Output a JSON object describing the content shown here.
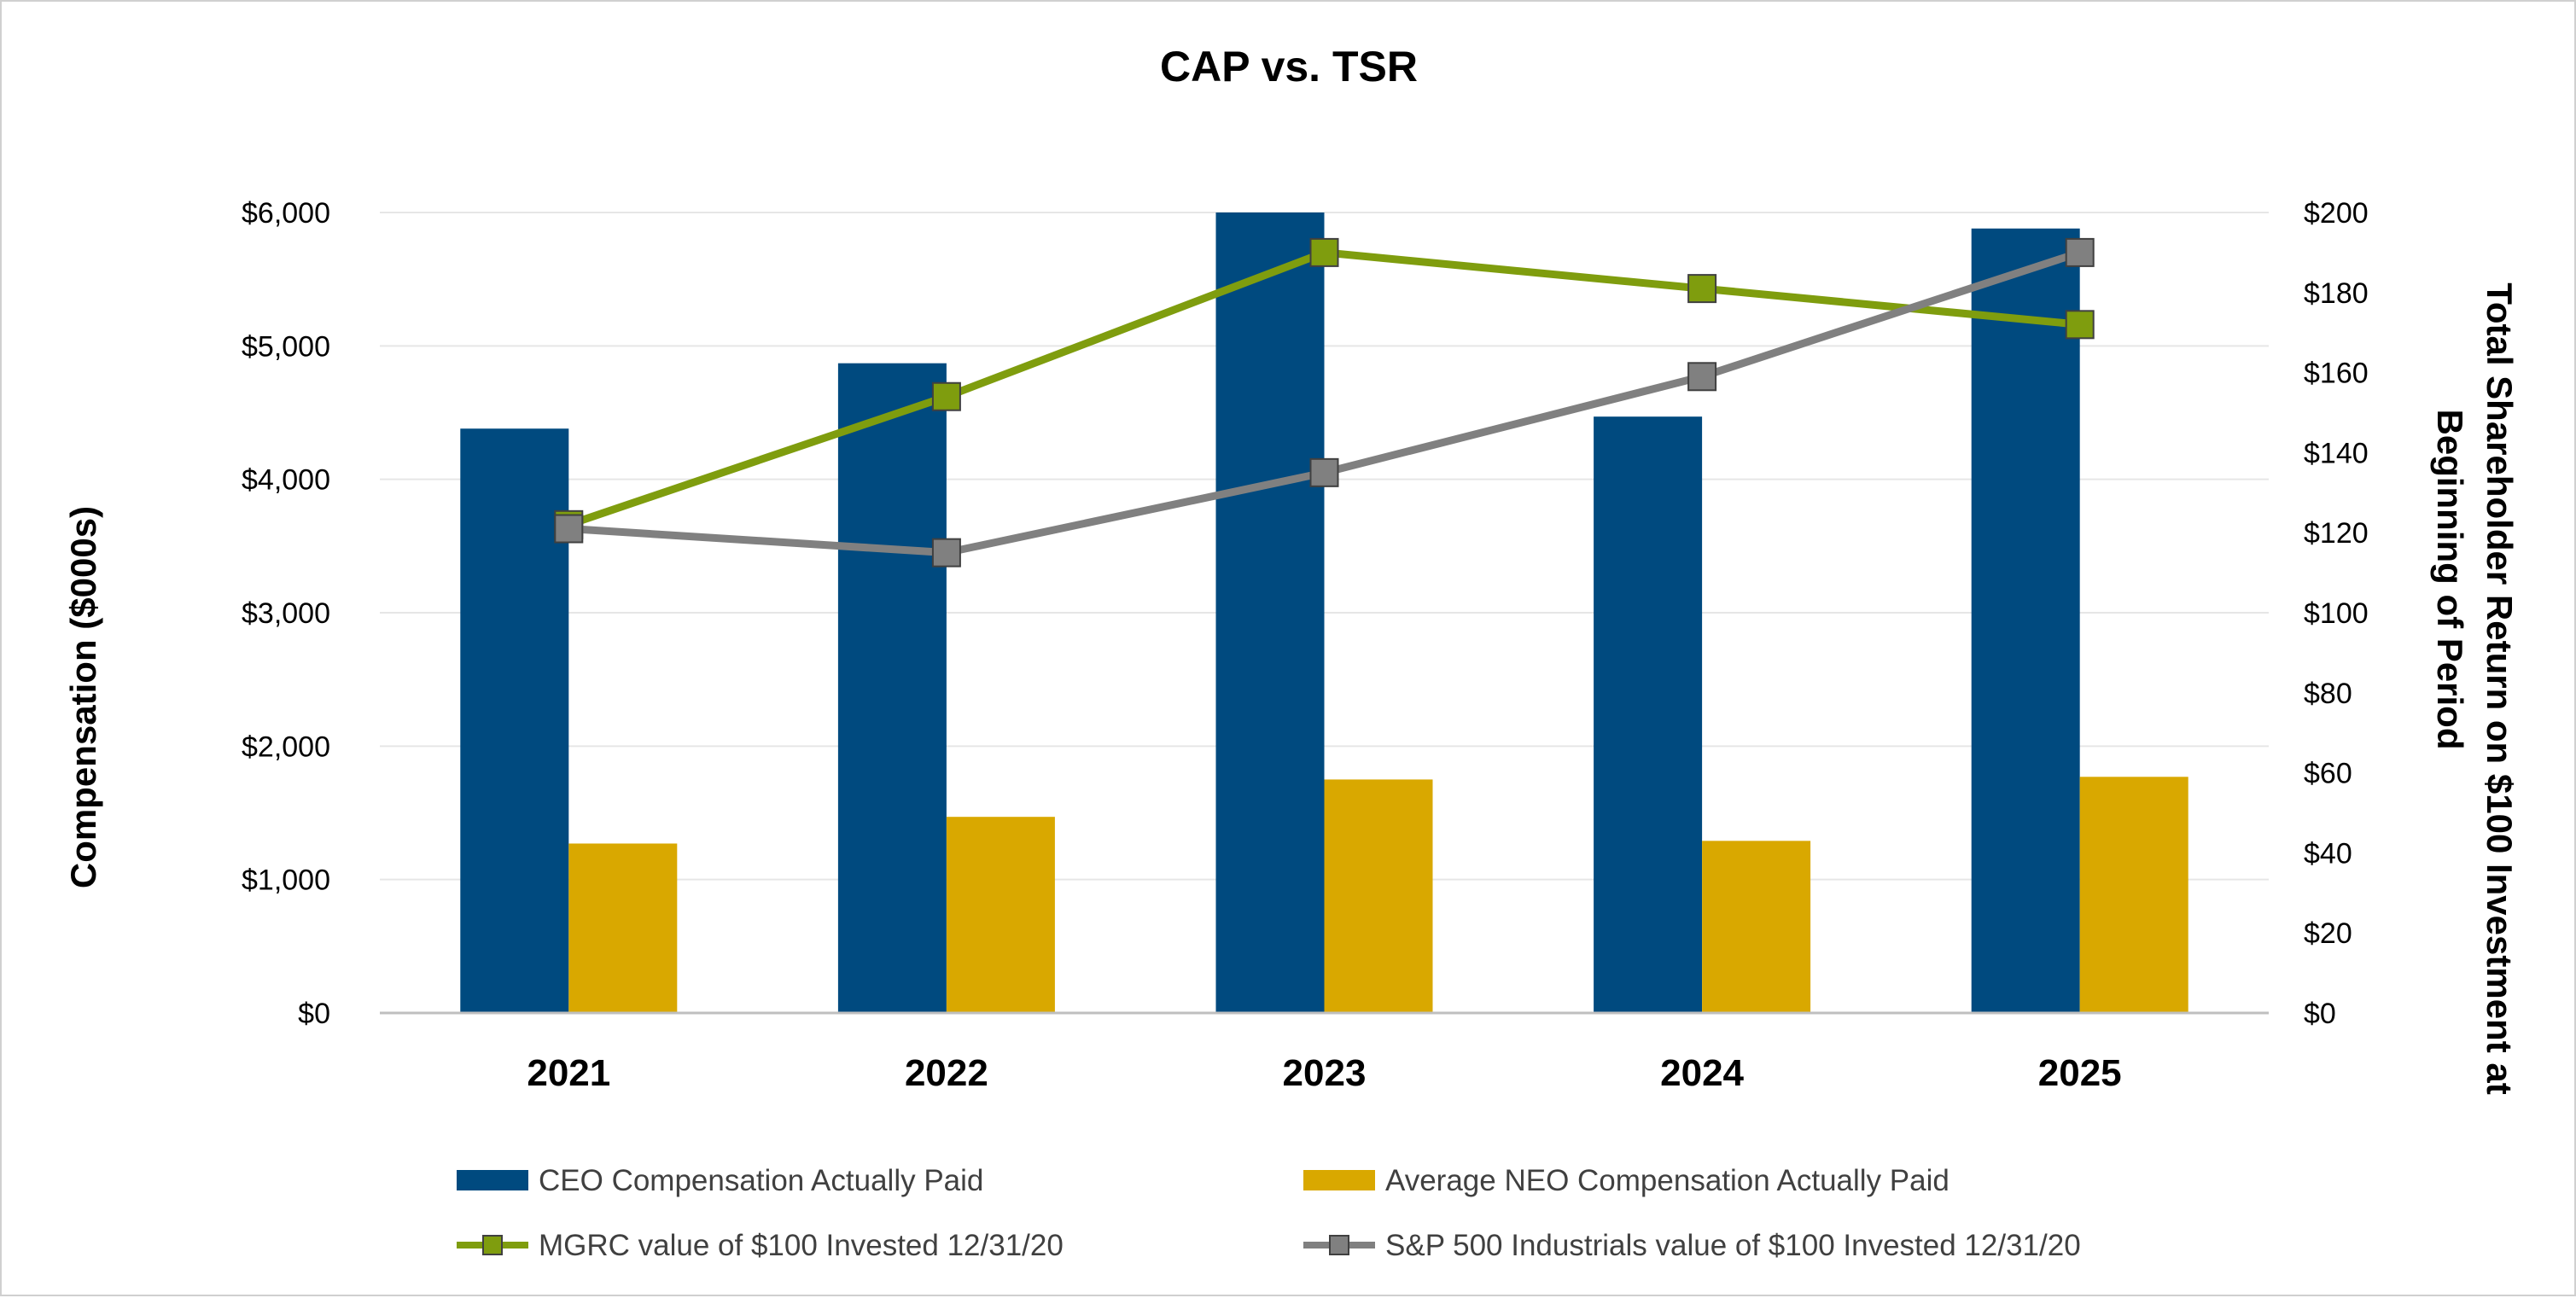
{
  "chart_data": {
    "type": "bar",
    "title": "CAP vs. TSR",
    "categories": [
      "2021",
      "2022",
      "2023",
      "2024",
      "2025"
    ],
    "ylabel": "Compensation ($000s)",
    "y2label_line1": "Total Shareholder Return on $100 Investment at",
    "y2label_line2": "Beginning of Period",
    "ylim": [
      0,
      6000
    ],
    "y2lim": [
      0,
      200
    ],
    "yticks": [
      "$0",
      "$1,000",
      "$2,000",
      "$3,000",
      "$4,000",
      "$5,000",
      "$6,000"
    ],
    "y2ticks": [
      "$0",
      "$20",
      "$40",
      "$60",
      "$80",
      "$100",
      "$120",
      "$140",
      "$160",
      "$180",
      "$200"
    ],
    "grid": true,
    "legend_position": "bottom",
    "bar_series": [
      {
        "name": "CEO Compensation Actually Paid",
        "color": "#004a7f",
        "values": [
          4380,
          4870,
          6000,
          4470,
          5880
        ]
      },
      {
        "name": "Average NEO Compensation Actually Paid",
        "color": "#d9a800",
        "values": [
          1270,
          1470,
          1750,
          1290,
          1770
        ]
      }
    ],
    "line_series": [
      {
        "name": "MGRC value of $100 Invested 12/31/20",
        "color": "#7f9d0e",
        "marker_color": "#7f9d0e",
        "values": [
          122,
          154,
          190,
          181,
          172
        ]
      },
      {
        "name": "S&P 500 Industrials value of $100 Invested 12/31/20",
        "color": "#808080",
        "marker_color": "#808080",
        "values": [
          121,
          115,
          135,
          159,
          190
        ]
      }
    ]
  }
}
